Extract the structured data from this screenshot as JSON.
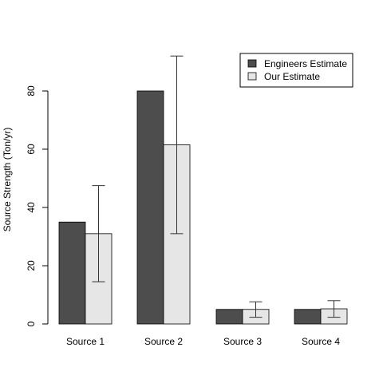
{
  "chart_data": {
    "type": "bar",
    "title": "",
    "xlabel": "",
    "ylabel": "Source Strength (Ton/yr)",
    "categories": [
      "Source 1",
      "Source 2",
      "Source 3",
      "Source 4"
    ],
    "ylim": [
      0,
      80
    ],
    "yticks": [
      0,
      20,
      40,
      60,
      80
    ],
    "grid": false,
    "legend_position": "top-right",
    "series": [
      {
        "name": "Engineers Estimate",
        "color": "#4d4d4d",
        "values": [
          35,
          80,
          5,
          5
        ]
      },
      {
        "name": "Our Estimate",
        "color": "#e6e6e6",
        "values": [
          31,
          61.5,
          5,
          5.2
        ],
        "error_low": [
          14.5,
          31,
          2.3,
          2.3
        ],
        "error_high": [
          47.5,
          92,
          7.6,
          8
        ]
      }
    ]
  }
}
